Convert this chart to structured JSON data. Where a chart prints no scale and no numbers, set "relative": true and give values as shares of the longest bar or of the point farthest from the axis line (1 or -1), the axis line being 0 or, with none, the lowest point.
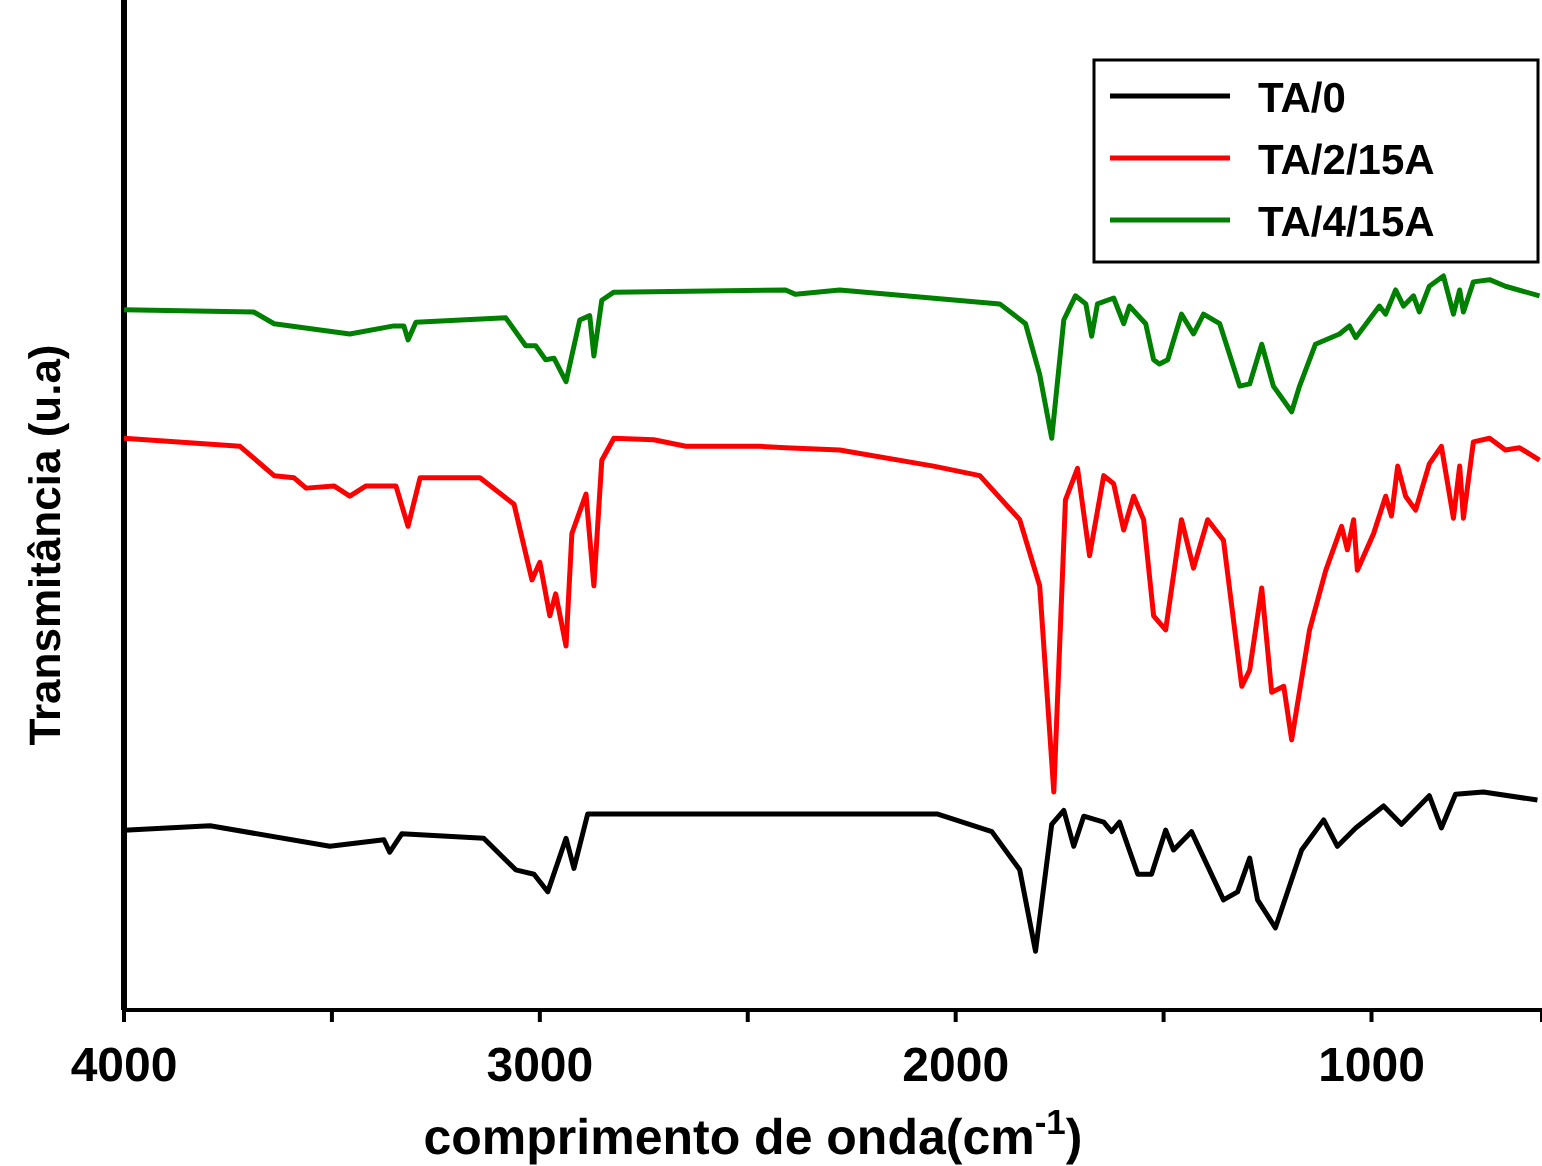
{
  "chart_data": {
    "type": "line",
    "xlabel": "comprimento de onda(cm$^{-1}$)",
    "ylabel": "Transmitância (u.a)",
    "relative": true,
    "legend": "top right",
    "grid": false,
    "marker": "none",
    "line_style": "solid",
    "xlim": [
      4000,
      590
    ],
    "xticks": [
      4000,
      {
        "value": 3500,
        "label": null
      },
      3000,
      {
        "value": 2500,
        "label": null
      },
      2000,
      {
        "value": 1500,
        "label": null
      },
      1000
    ],
    "series": [
      {
        "name": "TA/0",
        "color": "#000000",
        "x": [
          4000,
          3793,
          3505,
          3375,
          3361,
          3332,
          3135,
          3058,
          3014,
          2981,
          2937,
          2918,
          2885,
          2043,
          1913,
          1846,
          1808,
          1769,
          1740,
          1716,
          1692,
          1644,
          1625,
          1606,
          1562,
          1529,
          1495,
          1476,
          1433,
          1356,
          1322,
          1293,
          1274,
          1231,
          1168,
          1115,
          1082,
          1038,
          971,
          928,
          861,
          832,
          798,
          731,
          601
        ],
        "values": [
          0.245,
          0.251,
          0.223,
          0.232,
          0.215,
          0.24,
          0.234,
          0.191,
          0.185,
          0.161,
          0.234,
          0.193,
          0.267,
          0.267,
          0.243,
          0.191,
          0.08,
          0.253,
          0.272,
          0.223,
          0.264,
          0.256,
          0.243,
          0.256,
          0.185,
          0.185,
          0.245,
          0.218,
          0.243,
          0.15,
          0.161,
          0.207,
          0.15,
          0.112,
          0.218,
          0.259,
          0.223,
          0.248,
          0.278,
          0.253,
          0.292,
          0.248,
          0.294,
          0.297,
          0.286
        ]
      },
      {
        "name": "TA/2/15A",
        "color": "#ff0000",
        "x": [
          4000,
          3721,
          3639,
          3591,
          3562,
          3495,
          3457,
          3418,
          3346,
          3317,
          3288,
          3144,
          3062,
          3019,
          3000,
          2976,
          2962,
          2937,
          2923,
          2889,
          2870,
          2851,
          2822,
          2726,
          2649,
          2471,
          2409,
          2279,
          2053,
          1942,
          1846,
          1798,
          1764,
          1736,
          1707,
          1678,
          1644,
          1620,
          1596,
          1572,
          1548,
          1524,
          1495,
          1457,
          1428,
          1394,
          1356,
          1312,
          1293,
          1264,
          1240,
          1211,
          1192,
          1149,
          1110,
          1072,
          1058,
          1043,
          1034,
          995,
          966,
          952,
          937,
          918,
          894,
          861,
          832,
          803,
          788,
          779,
          755,
          716,
          678,
          644,
          596
        ],
        "values": [
          0.779,
          0.768,
          0.728,
          0.725,
          0.711,
          0.714,
          0.7,
          0.714,
          0.714,
          0.659,
          0.725,
          0.725,
          0.689,
          0.586,
          0.61,
          0.537,
          0.567,
          0.496,
          0.649,
          0.703,
          0.578,
          0.749,
          0.779,
          0.777,
          0.768,
          0.768,
          0.766,
          0.763,
          0.741,
          0.728,
          0.668,
          0.578,
          0.297,
          0.695,
          0.738,
          0.619,
          0.728,
          0.717,
          0.654,
          0.7,
          0.668,
          0.537,
          0.518,
          0.668,
          0.602,
          0.668,
          0.64,
          0.441,
          0.463,
          0.575,
          0.433,
          0.441,
          0.368,
          0.518,
          0.599,
          0.659,
          0.627,
          0.668,
          0.599,
          0.649,
          0.7,
          0.673,
          0.741,
          0.7,
          0.681,
          0.744,
          0.768,
          0.67,
          0.741,
          0.67,
          0.774,
          0.779,
          0.763,
          0.766,
          0.749
        ]
      },
      {
        "name": "TA/4/15A",
        "color": "#008000",
        "x": [
          4000,
          3688,
          3639,
          3457,
          3351,
          3327,
          3317,
          3298,
          3082,
          3034,
          3010,
          2986,
          2966,
          2937,
          2904,
          2880,
          2870,
          2851,
          2822,
          2409,
          2385,
          2279,
          1894,
          1832,
          1798,
          1769,
          1740,
          1712,
          1687,
          1673,
          1659,
          1620,
          1596,
          1582,
          1543,
          1524,
          1510,
          1490,
          1457,
          1428,
          1404,
          1365,
          1317,
          1293,
          1264,
          1236,
          1192,
          1173,
          1135,
          1077,
          1053,
          1038,
          981,
          966,
          942,
          923,
          899,
          885,
          861,
          827,
          803,
          788,
          779,
          755,
          716,
          678,
          596
        ],
        "values": [
          0.954,
          0.951,
          0.935,
          0.921,
          0.932,
          0.932,
          0.913,
          0.937,
          0.943,
          0.905,
          0.905,
          0.886,
          0.888,
          0.856,
          0.94,
          0.946,
          0.891,
          0.967,
          0.978,
          0.981,
          0.975,
          0.981,
          0.962,
          0.935,
          0.866,
          0.779,
          0.94,
          0.973,
          0.962,
          0.918,
          0.962,
          0.97,
          0.935,
          0.959,
          0.935,
          0.886,
          0.88,
          0.886,
          0.948,
          0.921,
          0.948,
          0.935,
          0.85,
          0.853,
          0.907,
          0.85,
          0.815,
          0.85,
          0.907,
          0.921,
          0.932,
          0.916,
          0.959,
          0.948,
          0.981,
          0.959,
          0.973,
          0.951,
          0.986,
          1,
          0.948,
          0.981,
          0.951,
          0.992,
          0.995,
          0.986,
          0.973
        ]
      }
    ]
  }
}
